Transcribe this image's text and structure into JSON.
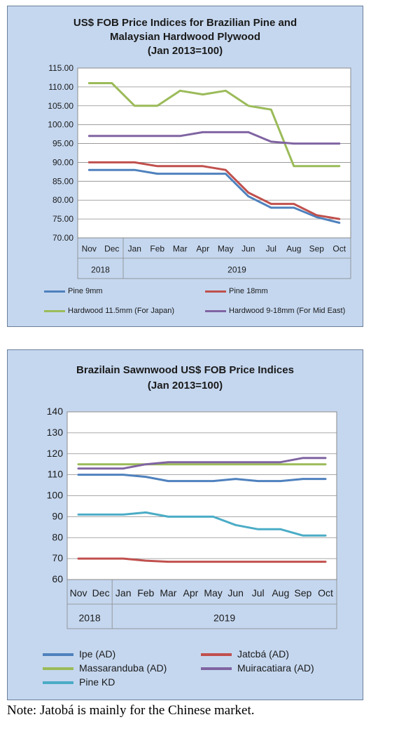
{
  "charts": [
    {
      "title_lines": [
        "US$ FOB Price Indices for Brazilian Pine and",
        "Malaysian Hardwood Plywood",
        "(Jan 2013=100)"
      ],
      "ylim": [
        70,
        115
      ],
      "yticks": [
        "70.00",
        "75.00",
        "80.00",
        "85.00",
        "90.00",
        "95.00",
        "100.00",
        "105.00",
        "110.00",
        "115.00"
      ],
      "months": [
        "Nov",
        "Dec",
        "Jan",
        "Feb",
        "Mar",
        "Apr",
        "May",
        "Jun",
        "Jul",
        "Aug",
        "Sep",
        "Oct"
      ],
      "years": [
        {
          "label": "2018",
          "span": 2
        },
        {
          "label": "2019",
          "span": 10
        }
      ],
      "legend": [
        "Pine 9mm",
        "Pine 18mm",
        "Hardwood 11.5mm (For Japan)",
        "Hardwood 9-18mm (For Mid East)"
      ]
    },
    {
      "title_lines": [
        "Brazilain Sawnwood US$ FOB Price Indices",
        "(Jan 2013=100)"
      ],
      "ylim": [
        60,
        140
      ],
      "yticks": [
        "60",
        "70",
        "80",
        "90",
        "100",
        "110",
        "120",
        "130",
        "140"
      ],
      "months": [
        "Nov",
        "Dec",
        "Jan",
        "Feb",
        "Mar",
        "Apr",
        "May",
        "Jun",
        "Jul",
        "Aug",
        "Sep",
        "Oct"
      ],
      "years": [
        {
          "label": "2018",
          "span": 2
        },
        {
          "label": "2019",
          "span": 10
        }
      ],
      "legend": [
        "Ipe (AD)",
        "Jatcbá (AD)",
        "Massaranduba (AD)",
        "Muiracatiara (AD)",
        "Pine KD"
      ]
    }
  ],
  "chart_data": [
    {
      "type": "line",
      "title": "US$ FOB Price Indices for Brazilian Pine and Malaysian Hardwood Plywood (Jan 2013=100)",
      "categories": [
        "Nov 2018",
        "Dec 2018",
        "Jan 2019",
        "Feb 2019",
        "Mar 2019",
        "Apr 2019",
        "May 2019",
        "Jun 2019",
        "Jul 2019",
        "Aug 2019",
        "Sep 2019",
        "Oct 2019"
      ],
      "ylim": [
        70,
        115
      ],
      "grid": true,
      "legend_position": "bottom",
      "series": [
        {
          "name": "Pine 9mm",
          "color": "#4f81bd",
          "values": [
            88,
            88,
            88,
            87,
            87,
            87,
            87,
            81,
            78,
            78,
            75.5,
            74
          ]
        },
        {
          "name": "Pine 18mm",
          "color": "#c0504d",
          "values": [
            90,
            90,
            90,
            89,
            89,
            89,
            88,
            82,
            79,
            79,
            76,
            75
          ]
        },
        {
          "name": "Hardwood 11.5mm (For Japan)",
          "color": "#9bbb59",
          "values": [
            111,
            111,
            105,
            105,
            109,
            108,
            109,
            105,
            104,
            89,
            89,
            89
          ]
        },
        {
          "name": "Hardwood 9-18mm (For Mid East)",
          "color": "#8064a2",
          "values": [
            97,
            97,
            97,
            97,
            97,
            98,
            98,
            98,
            95.5,
            95,
            95,
            95
          ]
        }
      ]
    },
    {
      "type": "line",
      "title": "Brazilain Sawnwood US$ FOB Price Indices (Jan 2013=100)",
      "categories": [
        "Nov 2018",
        "Dec 2018",
        "Jan 2019",
        "Feb 2019",
        "Mar 2019",
        "Apr 2019",
        "May 2019",
        "Jun 2019",
        "Jul 2019",
        "Aug 2019",
        "Sep 2019",
        "Oct 2019"
      ],
      "ylim": [
        60,
        140
      ],
      "grid": true,
      "legend_position": "bottom",
      "series": [
        {
          "name": "Ipe (AD)",
          "color": "#4f81bd",
          "values": [
            110,
            110,
            110,
            109,
            107,
            107,
            107,
            108,
            107,
            107,
            108,
            108
          ]
        },
        {
          "name": "Jatcbá (AD)",
          "color": "#c0504d",
          "values": [
            70,
            70,
            70,
            69,
            68.5,
            68.5,
            68.5,
            68.5,
            68.5,
            68.5,
            68.5,
            68.5
          ]
        },
        {
          "name": "Massaranduba (AD)",
          "color": "#9bbb59",
          "values": [
            115,
            115,
            115,
            115,
            115,
            115,
            115,
            115,
            115,
            115,
            115,
            115
          ]
        },
        {
          "name": "Muiracatiara (AD)",
          "color": "#8064a2",
          "values": [
            113,
            113,
            113,
            115,
            116,
            116,
            116,
            116,
            116,
            116,
            118,
            118
          ]
        },
        {
          "name": "Pine KD",
          "color": "#4bacc6",
          "values": [
            91,
            91,
            91,
            92,
            90,
            90,
            90,
            86,
            84,
            84,
            81,
            81
          ]
        }
      ]
    }
  ],
  "note": "Note: Jatobá is mainly for the Chinese market."
}
